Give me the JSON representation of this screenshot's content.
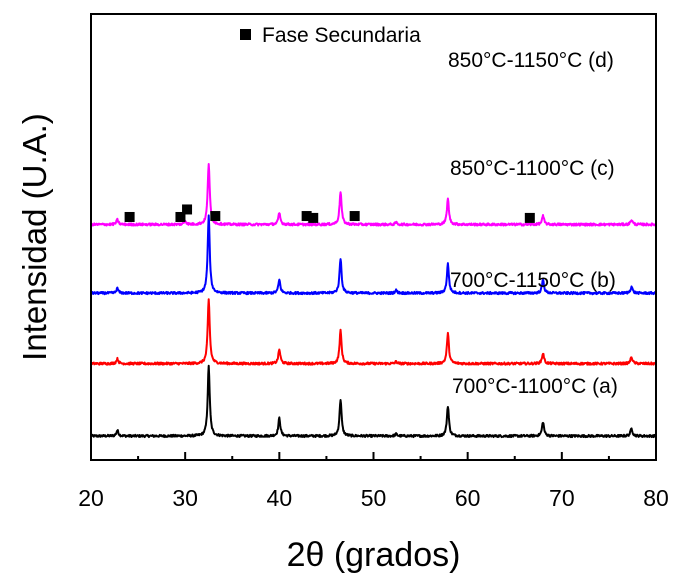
{
  "chart_data": {
    "type": "line",
    "xlabel": "2θ (grados)",
    "ylabel": "Intensidad (U.A.)",
    "xlim": [
      20,
      80
    ],
    "xticks": [
      20,
      30,
      40,
      50,
      60,
      70,
      80
    ],
    "y_scale": "arbitrary (stacked, offset patterns)",
    "grid": false,
    "legend": {
      "marker": "square",
      "label": "Fase Secundaria",
      "placement": "top-center"
    },
    "baseline_noise": 0.012,
    "series": [
      {
        "name": "700°C-1100°C (a)",
        "color": "#000000",
        "offset": 0,
        "peaks": [
          [
            22.8,
            0.06
          ],
          [
            32.5,
            0.74
          ],
          [
            40.0,
            0.19
          ],
          [
            46.5,
            0.39
          ],
          [
            52.4,
            0.02
          ],
          [
            57.9,
            0.32
          ],
          [
            68.0,
            0.15
          ],
          [
            77.4,
            0.08
          ]
        ]
      },
      {
        "name": "700°C-1150°C (b)",
        "color": "#ff0000",
        "offset": 0.77,
        "peaks": [
          [
            22.8,
            0.05
          ],
          [
            32.5,
            0.68
          ],
          [
            40.0,
            0.15
          ],
          [
            46.5,
            0.35
          ],
          [
            52.4,
            0.02
          ],
          [
            57.9,
            0.32
          ],
          [
            68.0,
            0.11
          ],
          [
            77.4,
            0.07
          ]
        ]
      },
      {
        "name": "850°C-1100°C (c)",
        "color": "#0000ff",
        "offset": 1.52,
        "peaks": [
          [
            22.8,
            0.05
          ],
          [
            32.5,
            0.82
          ],
          [
            40.0,
            0.14
          ],
          [
            46.5,
            0.37
          ],
          [
            52.4,
            0.03
          ],
          [
            57.9,
            0.31
          ],
          [
            68.0,
            0.14
          ],
          [
            77.4,
            0.07
          ]
        ]
      },
      {
        "name": "850°C-1150°C (d)",
        "color": "#ff00ff",
        "offset": 2.25,
        "peaks": [
          [
            22.8,
            0.05
          ],
          [
            30.0,
            0.04
          ],
          [
            32.5,
            0.65
          ],
          [
            40.0,
            0.12
          ],
          [
            46.5,
            0.35
          ],
          [
            52.4,
            0.02
          ],
          [
            57.9,
            0.27
          ],
          [
            68.0,
            0.09
          ],
          [
            77.4,
            0.05
          ]
        ]
      }
    ],
    "secondary_phase_markers": {
      "label": "Fase Secundaria",
      "points": [
        [
          24.1,
          2.33
        ],
        [
          29.5,
          2.33
        ],
        [
          30.2,
          2.41
        ],
        [
          33.2,
          2.34
        ],
        [
          42.9,
          2.34
        ],
        [
          43.6,
          2.32
        ],
        [
          48.0,
          2.34
        ],
        [
          66.6,
          2.32
        ]
      ]
    }
  }
}
